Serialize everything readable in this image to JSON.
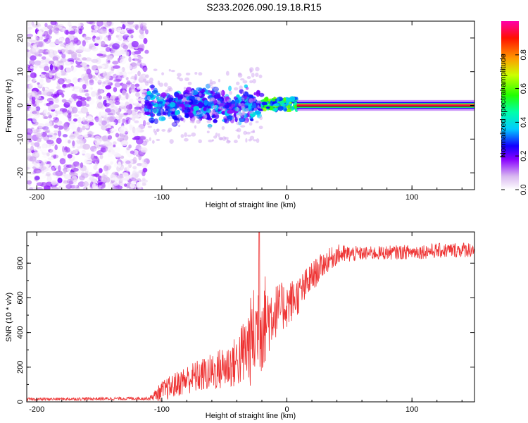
{
  "title": "S233.2026.090.19.18.R15",
  "chart_data": [
    {
      "type": "heatmap",
      "name": "spectrogram",
      "xlabel": "Height of straight line (km)",
      "ylabel": "Frequency (Hz)",
      "xlim": [
        -208,
        150
      ],
      "ylim": [
        -25,
        25
      ],
      "xticks": [
        -200,
        -100,
        0,
        100
      ],
      "yticks": [
        -20,
        -10,
        0,
        10,
        20
      ],
      "colorbar": {
        "label": "Normalized spectral amplitude",
        "range": [
          0,
          1
        ],
        "ticks": [
          0.0,
          0.2,
          0.4,
          0.6,
          0.8
        ]
      },
      "regions": [
        {
          "x_range": [
            -208,
            -112
          ],
          "description": "noise",
          "amplitude": 0.15
        },
        {
          "x_range": [
            -112,
            -20
          ],
          "description": "scintillation near 0 Hz",
          "amplitude": 0.35
        },
        {
          "x_range": [
            -20,
            8
          ],
          "description": "emerging tone",
          "amplitude": 0.5
        },
        {
          "x_range": [
            8,
            150
          ],
          "description": "carrier at 0 Hz",
          "amplitude": 0.95
        }
      ]
    },
    {
      "type": "line",
      "name": "snr",
      "xlabel": "Height of straight line (km)",
      "ylabel": "SNR (10 * v/v)",
      "xlim": [
        -208,
        150
      ],
      "ylim": [
        0,
        980
      ],
      "xticks": [
        -200,
        -100,
        0,
        100
      ],
      "yticks": [
        0,
        200,
        400,
        600,
        800
      ],
      "color": "#ee3333",
      "profile": [
        {
          "x": -208,
          "y": 15
        },
        {
          "x": -110,
          "y": 20
        },
        {
          "x": -100,
          "y": 60
        },
        {
          "x": -80,
          "y": 130
        },
        {
          "x": -60,
          "y": 170
        },
        {
          "x": -40,
          "y": 230
        },
        {
          "x": -30,
          "y": 330
        },
        {
          "x": -22,
          "y": 450
        },
        {
          "x": -10,
          "y": 520
        },
        {
          "x": 0,
          "y": 560
        },
        {
          "x": 10,
          "y": 620
        },
        {
          "x": 20,
          "y": 720
        },
        {
          "x": 30,
          "y": 800
        },
        {
          "x": 40,
          "y": 850
        },
        {
          "x": 60,
          "y": 855
        },
        {
          "x": 100,
          "y": 865
        },
        {
          "x": 150,
          "y": 880
        }
      ],
      "noise_amplitude": [
        {
          "x": -208,
          "a": 8
        },
        {
          "x": -110,
          "a": 10
        },
        {
          "x": -100,
          "a": 60
        },
        {
          "x": -60,
          "a": 110
        },
        {
          "x": -40,
          "a": 150
        },
        {
          "x": -22,
          "a": 330
        },
        {
          "x": -10,
          "a": 160
        },
        {
          "x": 10,
          "a": 110
        },
        {
          "x": 30,
          "a": 70
        },
        {
          "x": 60,
          "a": 40
        },
        {
          "x": 150,
          "a": 45
        }
      ],
      "peak": {
        "x": -22,
        "y": 980
      }
    }
  ]
}
